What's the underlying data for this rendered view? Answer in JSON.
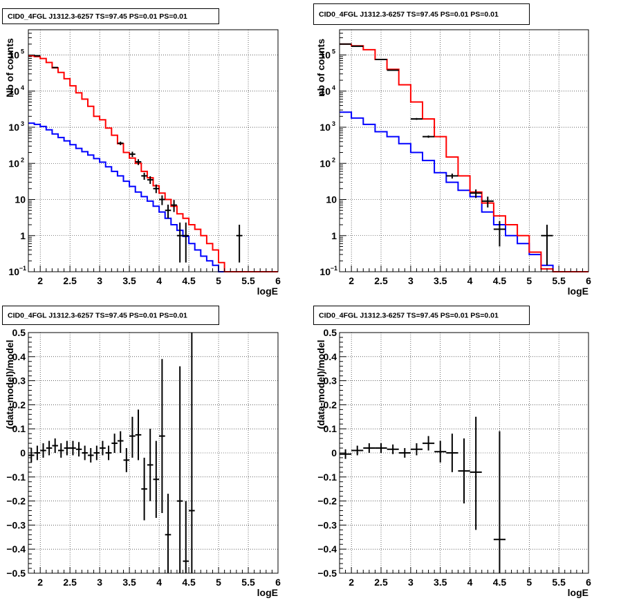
{
  "chart_data": [
    {
      "type": "line",
      "title": "CID0_4FGL J1312.3-6257 TS=97.45 PS=0.01 PS=0.01",
      "xlabel": "logE",
      "ylabel": "Nb of counts",
      "xlim": [
        1.8,
        6
      ],
      "ylim": [
        0.1,
        500000
      ],
      "yscale": "log",
      "grid": true,
      "x_ticks": [
        "2",
        "2.5",
        "3",
        "3.5",
        "4",
        "4.5",
        "5",
        "5.5",
        "6"
      ],
      "y_ticks": [
        {
          "v": 0.1,
          "b": "10",
          "e": "−1"
        },
        {
          "v": 1,
          "b": "1",
          "e": ""
        },
        {
          "v": 10,
          "b": "10",
          "e": ""
        },
        {
          "v": 100,
          "b": "10",
          "e": "2"
        },
        {
          "v": 1000,
          "b": "10",
          "e": "3"
        },
        {
          "v": 10000,
          "b": "10",
          "e": "4"
        },
        {
          "v": 100000,
          "b": "10",
          "e": "5"
        }
      ],
      "series": [
        {
          "color": "#0000ff",
          "edges": [
            1.8,
            1.9,
            2.0,
            2.1,
            2.2,
            2.3,
            2.4,
            2.5,
            2.6,
            2.7,
            2.8,
            2.9,
            3.0,
            3.1,
            3.2,
            3.3,
            3.4,
            3.5,
            3.6,
            3.7,
            3.8,
            3.9,
            4.0,
            4.1,
            4.2,
            4.3,
            4.4,
            4.5,
            4.6,
            4.7,
            4.8,
            4.9,
            5.0,
            5.1,
            6.0
          ],
          "values": [
            1300,
            1200,
            1050,
            850,
            650,
            520,
            420,
            330,
            260,
            210,
            170,
            135,
            108,
            80,
            60,
            45,
            32,
            23,
            16,
            12,
            9,
            6.5,
            4.5,
            3.0,
            2.0,
            1.4,
            0.95,
            0.6,
            0.4,
            0.27,
            0.2,
            0.15,
            0.1,
            0.1
          ]
        },
        {
          "color": "#ff0000",
          "edges": [
            1.8,
            1.9,
            2.0,
            2.1,
            2.2,
            2.3,
            2.4,
            2.5,
            2.6,
            2.7,
            2.8,
            2.9,
            3.0,
            3.1,
            3.2,
            3.3,
            3.4,
            3.5,
            3.6,
            3.7,
            3.8,
            3.9,
            4.0,
            4.1,
            4.2,
            4.3,
            4.4,
            4.5,
            4.6,
            4.7,
            4.8,
            4.9,
            5.0,
            5.1,
            6.0
          ],
          "values": [
            95000,
            90000,
            80000,
            62000,
            44000,
            33000,
            22000,
            14000,
            9000,
            6000,
            3800,
            2000,
            1600,
            950,
            600,
            350,
            200,
            140,
            100,
            60,
            40,
            24,
            15,
            10,
            6.5,
            4.0,
            3.0,
            2.0,
            1.5,
            1.0,
            0.6,
            0.4,
            0.18,
            0.1
          ]
        }
      ],
      "points": [
        {
          "x": 1.95,
          "y": 95000,
          "xerr": 0.05,
          "lo": 93000,
          "hi": 97000
        },
        {
          "x": 2.25,
          "y": 45000,
          "xerr": 0.05,
          "lo": 44000,
          "hi": 46000
        },
        {
          "x": 3.35,
          "y": 360,
          "xerr": 0.05,
          "lo": 320,
          "hi": 400
        },
        {
          "x": 3.55,
          "y": 180,
          "xerr": 0.05,
          "lo": 150,
          "hi": 210
        },
        {
          "x": 3.65,
          "y": 110,
          "xerr": 0.05,
          "lo": 90,
          "hi": 130
        },
        {
          "x": 3.75,
          "y": 45,
          "xerr": 0.05,
          "lo": 35,
          "hi": 55
        },
        {
          "x": 3.85,
          "y": 35,
          "xerr": 0.05,
          "lo": 27,
          "hi": 44
        },
        {
          "x": 3.95,
          "y": 20,
          "xerr": 0.05,
          "lo": 15,
          "hi": 26
        },
        {
          "x": 4.05,
          "y": 10,
          "xerr": 0.05,
          "lo": 7,
          "hi": 13
        },
        {
          "x": 4.15,
          "y": 5,
          "xerr": 0.05,
          "lo": 3,
          "hi": 7.2
        },
        {
          "x": 4.25,
          "y": 7,
          "xerr": 0.05,
          "lo": 4.5,
          "hi": 9.7
        },
        {
          "x": 4.35,
          "y": 1,
          "xerr": 0.05,
          "lo": 0.18,
          "hi": 2.3
        },
        {
          "x": 4.45,
          "y": 1,
          "xerr": 0.05,
          "lo": 0.18,
          "hi": 2.3
        },
        {
          "x": 5.35,
          "y": 1,
          "xerr": 0.05,
          "lo": 0.18,
          "hi": 2.0
        }
      ]
    },
    {
      "type": "line",
      "title": "CID0_4FGL J1312.3-6257 TS=97.45 PS=0.01 PS=0.01",
      "xlabel": "logE",
      "ylabel": "nb of counts",
      "xlim": [
        1.8,
        6
      ],
      "ylim": [
        0.1,
        500000
      ],
      "yscale": "log",
      "grid": true,
      "x_ticks": [
        "2",
        "2.5",
        "3",
        "3.5",
        "4",
        "4.5",
        "5",
        "5.5",
        "6"
      ],
      "y_ticks": [
        {
          "v": 0.1,
          "b": "10",
          "e": "−1"
        },
        {
          "v": 1,
          "b": "1",
          "e": ""
        },
        {
          "v": 10,
          "b": "10",
          "e": ""
        },
        {
          "v": 100,
          "b": "10",
          "e": "2"
        },
        {
          "v": 1000,
          "b": "10",
          "e": "3"
        },
        {
          "v": 10000,
          "b": "10",
          "e": "4"
        },
        {
          "v": 100000,
          "b": "10",
          "e": "5"
        }
      ],
      "series": [
        {
          "color": "#0000ff",
          "edges": [
            1.8,
            2.0,
            2.2,
            2.4,
            2.6,
            2.8,
            3.0,
            3.2,
            3.4,
            3.6,
            3.8,
            4.0,
            4.2,
            4.4,
            4.6,
            4.8,
            5.0,
            5.2,
            5.4,
            6.0
          ],
          "values": [
            2600,
            1800,
            1200,
            750,
            550,
            350,
            200,
            120,
            55,
            30,
            18,
            12,
            4.5,
            2.0,
            1.0,
            0.6,
            0.3,
            0.15,
            0.1
          ]
        },
        {
          "color": "#ff0000",
          "edges": [
            1.8,
            2.0,
            2.2,
            2.4,
            2.6,
            2.8,
            3.0,
            3.2,
            3.4,
            3.6,
            3.8,
            4.0,
            4.2,
            4.4,
            4.6,
            4.8,
            5.0,
            5.2,
            5.4,
            6.0
          ],
          "values": [
            200000,
            180000,
            140000,
            75000,
            40000,
            15000,
            5000,
            1700,
            550,
            150,
            45,
            16,
            8,
            3.5,
            2.0,
            1.0,
            0.35,
            0.12,
            0.1
          ]
        }
      ],
      "points": [
        {
          "x": 1.9,
          "y": 200000,
          "xerr": 0.1,
          "lo": 195000,
          "hi": 205000
        },
        {
          "x": 2.1,
          "y": 175000,
          "xerr": 0.1,
          "lo": 170000,
          "hi": 180000
        },
        {
          "x": 2.5,
          "y": 75000,
          "xerr": 0.1,
          "lo": 73000,
          "hi": 77000
        },
        {
          "x": 2.7,
          "y": 38000,
          "xerr": 0.1,
          "lo": 37000,
          "hi": 39000
        },
        {
          "x": 3.1,
          "y": 1700,
          "xerr": 0.1,
          "lo": 1600,
          "hi": 1800
        },
        {
          "x": 3.3,
          "y": 550,
          "xerr": 0.1,
          "lo": 510,
          "hi": 590
        },
        {
          "x": 3.7,
          "y": 45,
          "xerr": 0.1,
          "lo": 38,
          "hi": 52
        },
        {
          "x": 4.1,
          "y": 15,
          "xerr": 0.1,
          "lo": 11,
          "hi": 19
        },
        {
          "x": 4.3,
          "y": 9,
          "xerr": 0.1,
          "lo": 6,
          "hi": 12
        },
        {
          "x": 4.5,
          "y": 1.5,
          "xerr": 0.1,
          "lo": 0.5,
          "hi": 2.5
        },
        {
          "x": 5.3,
          "y": 1,
          "xerr": 0.1,
          "lo": 0.15,
          "hi": 2.0
        }
      ]
    },
    {
      "type": "scatter",
      "title": "CID0_4FGL J1312.3-6257 TS=97.45 PS=0.01 PS=0.01",
      "xlabel": "logE",
      "ylabel": "(data-model)/model",
      "xlim": [
        1.8,
        6
      ],
      "ylim": [
        -0.5,
        0.5
      ],
      "grid": true,
      "x_ticks": [
        "2",
        "2.5",
        "3",
        "3.5",
        "4",
        "4.5",
        "5",
        "5.5",
        "6"
      ],
      "y_ticks": [
        "−0.5",
        "−0.4",
        "−0.3",
        "−0.2",
        "−0.1",
        "0",
        "0.1",
        "0.2",
        "0.3",
        "0.4",
        "0.5"
      ],
      "points": [
        {
          "x": 1.85,
          "y": -0.01,
          "xerr": 0.05,
          "lo": -0.04,
          "hi": 0.02
        },
        {
          "x": 1.95,
          "y": 0.0,
          "xerr": 0.05,
          "lo": -0.03,
          "hi": 0.03
        },
        {
          "x": 2.05,
          "y": 0.01,
          "xerr": 0.05,
          "lo": -0.02,
          "hi": 0.04
        },
        {
          "x": 2.15,
          "y": 0.02,
          "xerr": 0.05,
          "lo": -0.01,
          "hi": 0.05
        },
        {
          "x": 2.25,
          "y": 0.03,
          "xerr": 0.05,
          "lo": 0.0,
          "hi": 0.06
        },
        {
          "x": 2.35,
          "y": 0.01,
          "xerr": 0.05,
          "lo": -0.02,
          "hi": 0.04
        },
        {
          "x": 2.45,
          "y": 0.02,
          "xerr": 0.05,
          "lo": -0.01,
          "hi": 0.05
        },
        {
          "x": 2.55,
          "y": 0.02,
          "xerr": 0.05,
          "lo": -0.01,
          "hi": 0.05
        },
        {
          "x": 2.65,
          "y": 0.015,
          "xerr": 0.05,
          "lo": -0.015,
          "hi": 0.045
        },
        {
          "x": 2.75,
          "y": 0.0,
          "xerr": 0.05,
          "lo": -0.03,
          "hi": 0.03
        },
        {
          "x": 2.85,
          "y": -0.01,
          "xerr": 0.05,
          "lo": -0.04,
          "hi": 0.02
        },
        {
          "x": 2.95,
          "y": 0.0,
          "xerr": 0.05,
          "lo": -0.03,
          "hi": 0.03
        },
        {
          "x": 3.05,
          "y": 0.02,
          "xerr": 0.05,
          "lo": -0.01,
          "hi": 0.05
        },
        {
          "x": 3.15,
          "y": 0.0,
          "xerr": 0.05,
          "lo": -0.03,
          "hi": 0.03
        },
        {
          "x": 3.25,
          "y": 0.04,
          "xerr": 0.05,
          "lo": 0.0,
          "hi": 0.08
        },
        {
          "x": 3.35,
          "y": 0.05,
          "xerr": 0.05,
          "lo": 0.0,
          "hi": 0.09
        },
        {
          "x": 3.45,
          "y": -0.03,
          "xerr": 0.05,
          "lo": -0.08,
          "hi": 0.02
        },
        {
          "x": 3.55,
          "y": 0.07,
          "xerr": 0.05,
          "lo": -0.02,
          "hi": 0.15
        },
        {
          "x": 3.65,
          "y": 0.075,
          "xerr": 0.05,
          "lo": -0.03,
          "hi": 0.18
        },
        {
          "x": 3.75,
          "y": -0.15,
          "xerr": 0.05,
          "lo": -0.28,
          "hi": -0.02
        },
        {
          "x": 3.85,
          "y": -0.05,
          "xerr": 0.05,
          "lo": -0.2,
          "hi": 0.1
        },
        {
          "x": 3.95,
          "y": -0.11,
          "xerr": 0.05,
          "lo": -0.27,
          "hi": 0.05
        },
        {
          "x": 4.05,
          "y": 0.07,
          "xerr": 0.05,
          "lo": -0.25,
          "hi": 0.39
        },
        {
          "x": 4.15,
          "y": -0.34,
          "xerr": 0.05,
          "lo": -0.5,
          "hi": -0.17
        },
        {
          "x": 4.35,
          "y": -0.2,
          "xerr": 0.05,
          "lo": -0.5,
          "hi": 0.36
        },
        {
          "x": 4.45,
          "y": -0.45,
          "xerr": 0.05,
          "lo": -0.5,
          "hi": -0.2
        },
        {
          "x": 4.55,
          "y": -0.24,
          "xerr": 0.05,
          "lo": -0.5,
          "hi": 0.5
        }
      ]
    },
    {
      "type": "scatter",
      "title": "CID0_4FGL J1312.3-6257 TS=97.45 PS=0.01 PS=0.01",
      "xlabel": "logE",
      "ylabel": "(data-model)/model",
      "xlim": [
        1.8,
        6
      ],
      "ylim": [
        -0.5,
        0.5
      ],
      "grid": true,
      "x_ticks": [
        "2",
        "2.5",
        "3",
        "3.5",
        "4",
        "4.5",
        "5",
        "5.5",
        "6"
      ],
      "y_ticks": [
        "−0.5",
        "−0.4",
        "−0.3",
        "−0.2",
        "−0.1",
        "0",
        "0.1",
        "0.2",
        "0.3",
        "0.4",
        "0.5"
      ],
      "points": [
        {
          "x": 1.9,
          "y": -0.005,
          "xerr": 0.1,
          "lo": -0.025,
          "hi": 0.015
        },
        {
          "x": 2.1,
          "y": 0.01,
          "xerr": 0.1,
          "lo": -0.01,
          "hi": 0.03
        },
        {
          "x": 2.3,
          "y": 0.02,
          "xerr": 0.1,
          "lo": 0.0,
          "hi": 0.04
        },
        {
          "x": 2.5,
          "y": 0.02,
          "xerr": 0.1,
          "lo": 0.0,
          "hi": 0.04
        },
        {
          "x": 2.7,
          "y": 0.015,
          "xerr": 0.1,
          "lo": -0.005,
          "hi": 0.035
        },
        {
          "x": 2.9,
          "y": 0.0,
          "xerr": 0.1,
          "lo": -0.02,
          "hi": 0.02
        },
        {
          "x": 3.1,
          "y": 0.015,
          "xerr": 0.1,
          "lo": -0.01,
          "hi": 0.04
        },
        {
          "x": 3.3,
          "y": 0.04,
          "xerr": 0.1,
          "lo": 0.01,
          "hi": 0.07
        },
        {
          "x": 3.5,
          "y": 0.005,
          "xerr": 0.1,
          "lo": -0.04,
          "hi": 0.05
        },
        {
          "x": 3.7,
          "y": 0.0,
          "xerr": 0.1,
          "lo": -0.08,
          "hi": 0.08
        },
        {
          "x": 3.9,
          "y": -0.075,
          "xerr": 0.1,
          "lo": -0.21,
          "hi": 0.06
        },
        {
          "x": 4.1,
          "y": -0.08,
          "xerr": 0.1,
          "lo": -0.32,
          "hi": 0.15
        },
        {
          "x": 4.5,
          "y": -0.36,
          "xerr": 0.1,
          "lo": -0.5,
          "hi": 0.09
        }
      ]
    }
  ]
}
